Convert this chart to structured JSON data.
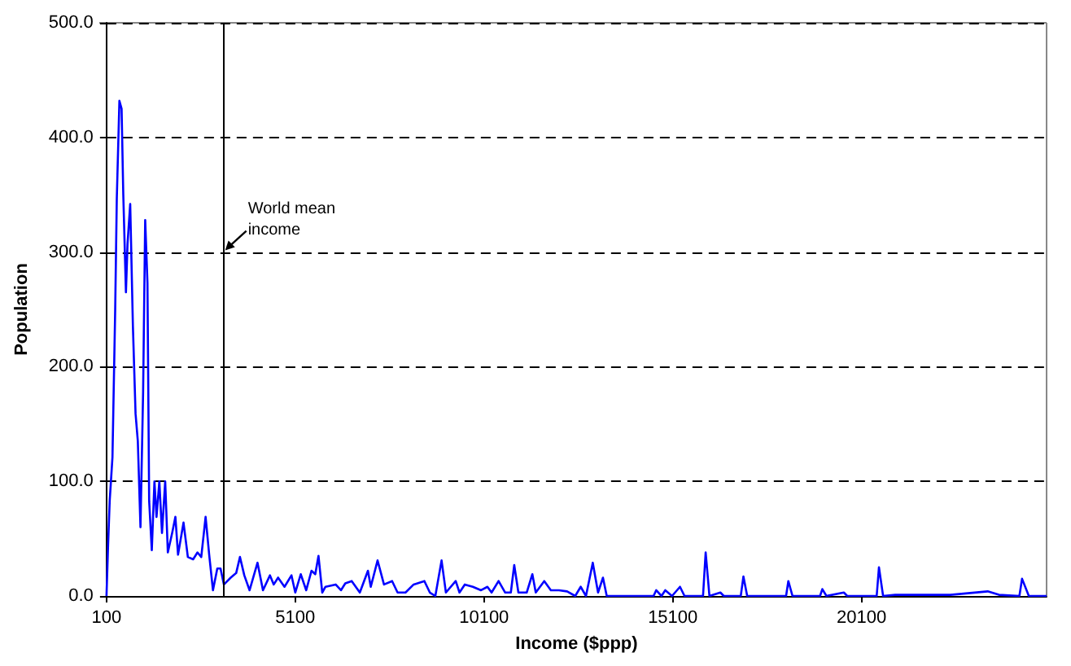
{
  "chart_data": {
    "type": "line",
    "xlabel": "Income ($ppp)",
    "ylabel": "Population",
    "x": [
      100,
      143,
      185,
      258,
      330,
      373,
      442,
      500,
      545,
      615,
      657,
      728,
      800,
      870,
      930,
      1000,
      1070,
      1125,
      1185,
      1230,
      1300,
      1370,
      1425,
      1500,
      1570,
      1655,
      1725,
      1840,
      1925,
      1995,
      2140,
      2255,
      2395,
      2510,
      2610,
      2725,
      2820,
      2920,
      3035,
      3120,
      3210,
      3390,
      3535,
      3635,
      3750,
      3890,
      4100,
      4245,
      4430,
      4530,
      4645,
      4815,
      5000,
      5100,
      5245,
      5390,
      5530,
      5630,
      5715,
      5815,
      5900,
      6170,
      6310,
      6425,
      6595,
      6810,
      7025,
      7100,
      7280,
      7450,
      7665,
      7810,
      8020,
      8235,
      8520,
      8665,
      8810,
      8975,
      9090,
      9350,
      9450,
      9590,
      9805,
      10020,
      10190,
      10300,
      10485,
      10660,
      10810,
      10900,
      11010,
      11230,
      11380,
      11470,
      11695,
      11870,
      12085,
      12300,
      12515,
      12660,
      12800,
      12980,
      13120,
      13250,
      13350,
      14590,
      14660,
      14800,
      14900,
      15080,
      15290,
      15410,
      15900,
      15970,
      16070,
      16360,
      16450,
      16900,
      16970,
      17070,
      18100,
      18160,
      18270,
      19000,
      19060,
      19170,
      19630,
      19720,
      20500,
      20560,
      20670,
      20990,
      21490,
      22450,
      23440,
      23740,
      24280,
      24350,
      24530,
      25000
    ],
    "values": [
      0,
      45,
      83,
      121,
      249,
      347,
      432,
      425,
      350,
      265,
      307,
      342,
      235,
      159,
      135,
      60,
      178,
      328,
      273,
      83,
      40,
      100,
      69,
      100,
      55,
      100,
      38,
      55,
      69,
      36,
      64,
      34,
      32,
      38,
      34,
      69,
      36,
      5,
      24,
      24,
      10,
      16,
      20,
      34,
      18,
      5,
      29,
      5,
      18,
      10,
      16,
      8,
      18,
      3,
      19,
      5,
      22,
      19,
      35,
      3,
      8,
      10,
      5,
      11,
      13,
      3,
      22,
      8,
      31,
      10,
      13,
      3,
      3,
      10,
      13,
      3,
      0,
      31,
      3,
      13,
      3,
      10,
      8,
      5,
      8,
      3,
      13,
      3,
      3,
      27,
      3,
      3,
      19,
      3,
      13,
      5,
      5,
      4,
      0,
      8,
      0,
      29,
      3,
      16,
      0,
      0,
      5,
      0,
      5,
      0,
      8,
      0,
      0,
      38,
      0,
      3,
      0,
      0,
      17,
      0,
      0,
      13,
      0,
      0,
      6,
      0,
      3,
      0,
      0,
      25,
      0,
      1,
      1,
      1,
      4,
      1,
      0,
      15,
      0,
      0
    ],
    "color": "#0000ff",
    "xlim": [
      100,
      25000
    ],
    "xticks": [
      100,
      5100,
      10100,
      15100,
      20100
    ],
    "ylim": [
      0,
      500
    ],
    "yticks": [
      {
        "value": 0,
        "label": "0.0"
      },
      {
        "value": 100,
        "label": "100.0"
      },
      {
        "value": 200,
        "label": "200.0"
      },
      {
        "value": 300,
        "label": "300.0"
      },
      {
        "value": 400,
        "label": "400.0"
      },
      {
        "value": 500,
        "label": "500.0"
      }
    ],
    "grid": "y",
    "line_style": "solid",
    "marker": "none",
    "ref_lines": [
      {
        "axis": "x",
        "value": 3200,
        "color": "#000000"
      }
    ],
    "annotations": [
      {
        "text": "World mean income",
        "x": 3200,
        "y": 300
      }
    ]
  }
}
